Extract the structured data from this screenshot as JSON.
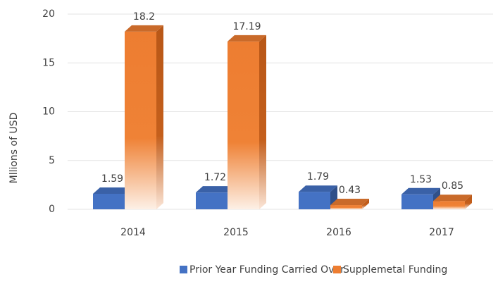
{
  "chart_data": {
    "type": "bar3d",
    "y_label": "Mllions of USD",
    "categories": [
      "2014",
      "2015",
      "2016",
      "2017"
    ],
    "series": [
      {
        "name": "Prior Year Funding Carried Over",
        "color": "#4472c4",
        "values": [
          1.59,
          1.72,
          1.79,
          1.53
        ]
      },
      {
        "name": "Supplemetal Funding",
        "color": "#ed7d31",
        "values": [
          18.2,
          17.19,
          0.43,
          0.85
        ]
      }
    ],
    "ylim": [
      0,
      20
    ],
    "yticks": [
      0,
      5,
      10,
      15,
      20
    ],
    "grid": true,
    "legend": "bottom"
  }
}
